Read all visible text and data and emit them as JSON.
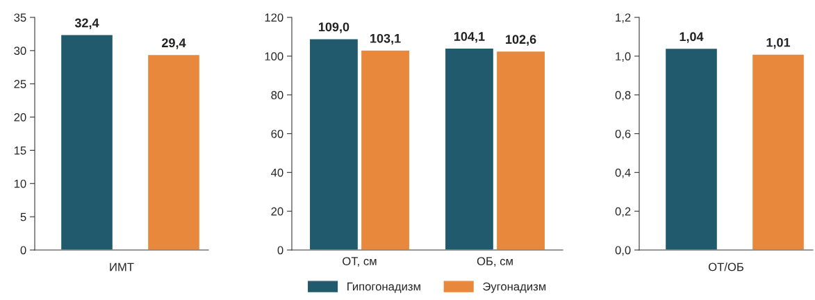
{
  "chart_data": [
    {
      "type": "bar",
      "categories": [
        null,
        null
      ],
      "xlabel": "ИМТ",
      "ylim": [
        0,
        35
      ],
      "yticks": [
        0,
        5,
        10,
        15,
        20,
        25,
        30,
        35
      ],
      "grid": false,
      "legend": false,
      "values": [
        32.4,
        29.4
      ],
      "colors": [
        "#215a6d",
        "#e8883c"
      ],
      "value_labels": [
        "32,4",
        "29,4"
      ]
    },
    {
      "type": "bar",
      "categories": [
        "ОТ, см",
        "ОБ, см"
      ],
      "ylim": [
        0,
        120
      ],
      "yticks": [
        0,
        20,
        40,
        60,
        80,
        100,
        120
      ],
      "grid": false,
      "legend": "bottom",
      "series": [
        {
          "name": "Гипогонадизм",
          "color": "#215a6d",
          "values": [
            109.0,
            104.1
          ],
          "value_labels": [
            "109,0",
            "104,1"
          ]
        },
        {
          "name": "Эугонадизм",
          "color": "#e8883c",
          "values": [
            103.1,
            102.6
          ],
          "value_labels": [
            "103,1",
            "102,6"
          ]
        }
      ]
    },
    {
      "type": "bar",
      "categories": [
        null,
        null
      ],
      "xlabel": "ОТ/ОБ",
      "ylim": [
        0,
        1.2
      ],
      "yticks": [
        {
          "value": 0,
          "label": "0,0"
        },
        {
          "value": 0.2,
          "label": "0,2"
        },
        {
          "value": 0.4,
          "label": "0,4"
        },
        {
          "value": 0.6,
          "label": "0,6"
        },
        {
          "value": 0.8,
          "label": "0,8"
        },
        {
          "value": 1.0,
          "label": "1,0"
        },
        {
          "value": 1.2,
          "label": "1,2"
        }
      ],
      "grid": false,
      "legend": false,
      "values": [
        1.04,
        1.01
      ],
      "colors": [
        "#215a6d",
        "#e8883c"
      ],
      "value_labels": [
        "1,04",
        "1,01"
      ]
    }
  ]
}
